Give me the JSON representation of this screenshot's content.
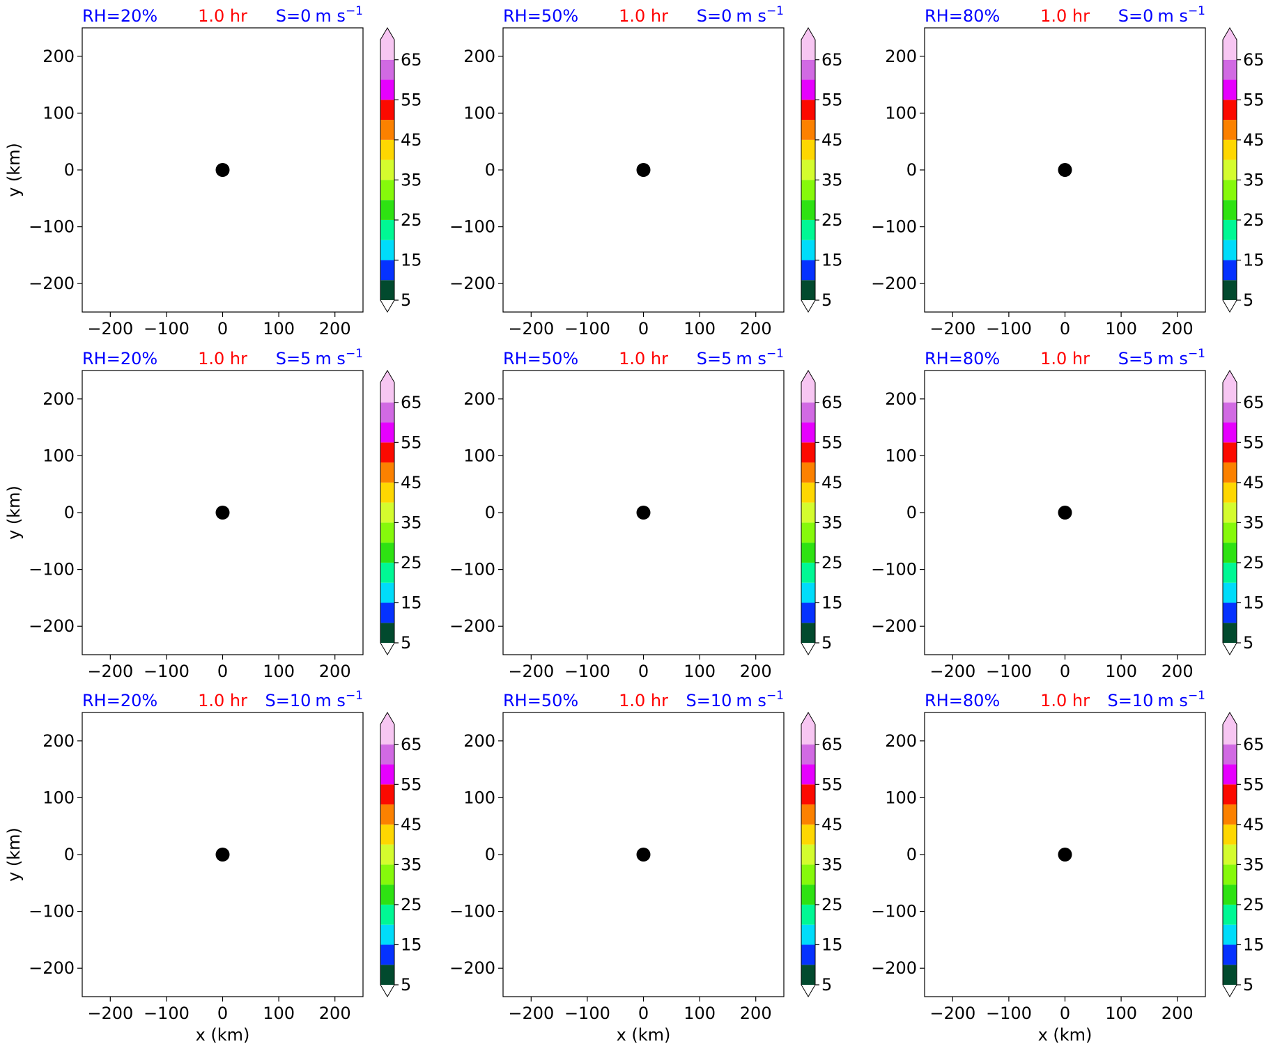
{
  "chart_data": {
    "type": "scatter",
    "panels": [
      {
        "rh_label": "RH=20%",
        "time_label": "1.0 hr",
        "shear_prefix": "S=",
        "shear_value": "0",
        "shear_units": "m s",
        "shear_exp": "−1",
        "ylabel": "y (km)",
        "xlabel": "",
        "points": [
          {
            "x": 0,
            "y": 0
          }
        ]
      },
      {
        "rh_label": "RH=50%",
        "time_label": "1.0 hr",
        "shear_prefix": "S=",
        "shear_value": "0",
        "shear_units": "m s",
        "shear_exp": "−1",
        "ylabel": "",
        "xlabel": "",
        "points": [
          {
            "x": 0,
            "y": 0
          }
        ]
      },
      {
        "rh_label": "RH=80%",
        "time_label": "1.0 hr",
        "shear_prefix": "S=",
        "shear_value": "0",
        "shear_units": "m s",
        "shear_exp": "−1",
        "ylabel": "",
        "xlabel": "",
        "points": [
          {
            "x": 0,
            "y": 0
          }
        ]
      },
      {
        "rh_label": "RH=20%",
        "time_label": "1.0 hr",
        "shear_prefix": "S=",
        "shear_value": "5",
        "shear_units": "m s",
        "shear_exp": "−1",
        "ylabel": "y (km)",
        "xlabel": "",
        "points": [
          {
            "x": 0,
            "y": 0
          }
        ]
      },
      {
        "rh_label": "RH=50%",
        "time_label": "1.0 hr",
        "shear_prefix": "S=",
        "shear_value": "5",
        "shear_units": "m s",
        "shear_exp": "−1",
        "ylabel": "",
        "xlabel": "",
        "points": [
          {
            "x": 0,
            "y": 0
          }
        ]
      },
      {
        "rh_label": "RH=80%",
        "time_label": "1.0 hr",
        "shear_prefix": "S=",
        "shear_value": "5",
        "shear_units": "m s",
        "shear_exp": "−1",
        "ylabel": "",
        "xlabel": "",
        "points": [
          {
            "x": 0,
            "y": 0
          }
        ]
      },
      {
        "rh_label": "RH=20%",
        "time_label": "1.0 hr",
        "shear_prefix": "S=",
        "shear_value": "10",
        "shear_units": "m s",
        "shear_exp": "−1",
        "ylabel": "y (km)",
        "xlabel": "x (km)",
        "points": [
          {
            "x": 0,
            "y": 0
          }
        ]
      },
      {
        "rh_label": "RH=50%",
        "time_label": "1.0 hr",
        "shear_prefix": "S=",
        "shear_value": "10",
        "shear_units": "m s",
        "shear_exp": "−1",
        "ylabel": "",
        "xlabel": "x (km)",
        "points": [
          {
            "x": 0,
            "y": 0
          }
        ]
      },
      {
        "rh_label": "RH=80%",
        "time_label": "1.0 hr",
        "shear_prefix": "S=",
        "shear_value": "10",
        "shear_units": "m s",
        "shear_exp": "−1",
        "ylabel": "",
        "xlabel": "x (km)",
        "points": [
          {
            "x": 0,
            "y": 0
          }
        ]
      }
    ],
    "xlim": [
      -250,
      250
    ],
    "ylim": [
      -250,
      250
    ],
    "xticks": [
      -200,
      -100,
      0,
      100,
      200
    ],
    "yticks": [
      -200,
      -100,
      0,
      100,
      200
    ],
    "xtick_labels": [
      "−200",
      "−100",
      "0",
      "100",
      "200"
    ],
    "ytick_labels": [
      "−200",
      "−100",
      "0",
      "100",
      "200"
    ],
    "grid": false,
    "marker_color": "#000000",
    "colorbar": {
      "levels": [
        5,
        10,
        15,
        20,
        25,
        30,
        35,
        40,
        45,
        50,
        55,
        60,
        65,
        70
      ],
      "colors": [
        "#024a2e",
        "#0532ff",
        "#00dcfa",
        "#00f894",
        "#2ee212",
        "#86f90b",
        "#d4fc2e",
        "#fed701",
        "#fc8100",
        "#fc0a00",
        "#e600fe",
        "#d16ae3",
        "#f7c6f2"
      ],
      "ticks": [
        5,
        15,
        25,
        35,
        45,
        55,
        65
      ],
      "tick_labels": [
        "5",
        "15",
        "25",
        "35",
        "45",
        "55",
        "65"
      ],
      "extend": "both"
    },
    "colors": {
      "rh": "#0000ff",
      "time": "#ff0000",
      "shear": "#0000ff"
    }
  }
}
